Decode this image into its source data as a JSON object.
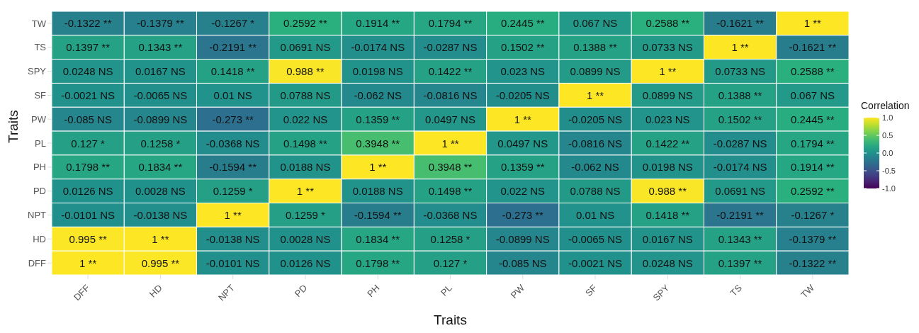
{
  "chart_data": {
    "type": "heatmap",
    "xlabel": "Traits",
    "ylabel": "Traits",
    "clabel": "Correlation",
    "categories": [
      "DFF",
      "HD",
      "NPT",
      "PD",
      "PH",
      "PL",
      "PW",
      "SF",
      "SPY",
      "TS",
      "TW"
    ],
    "y_categories": [
      "TW",
      "TS",
      "SPY",
      "SF",
      "PW",
      "PL",
      "PH",
      "PD",
      "NPT",
      "HD",
      "DFF"
    ],
    "cells": [
      [
        -0.1322,
        -0.1379,
        -0.1267,
        0.2592,
        0.1914,
        0.1794,
        0.2445,
        0.067,
        0.2588,
        -0.1621,
        1
      ],
      [
        0.1397,
        0.1343,
        -0.2191,
        0.0691,
        -0.0174,
        -0.0287,
        0.1502,
        0.1388,
        0.0733,
        1,
        -0.1621
      ],
      [
        0.0248,
        0.0167,
        0.1418,
        0.988,
        0.0198,
        0.1422,
        0.023,
        0.0899,
        1,
        0.0733,
        0.2588
      ],
      [
        -0.0021,
        -0.0065,
        0.01,
        0.0788,
        -0.062,
        -0.0816,
        -0.0205,
        1,
        0.0899,
        0.1388,
        0.067
      ],
      [
        -0.085,
        -0.0899,
        -0.273,
        0.022,
        0.1359,
        0.0497,
        1,
        -0.0205,
        0.023,
        0.1502,
        0.2445
      ],
      [
        0.127,
        0.1258,
        -0.0368,
        0.1498,
        0.3948,
        1,
        0.0497,
        -0.0816,
        0.1422,
        -0.0287,
        0.1794
      ],
      [
        0.1798,
        0.1834,
        -0.1594,
        0.0188,
        1,
        0.3948,
        0.1359,
        -0.062,
        0.0198,
        -0.0174,
        0.1914
      ],
      [
        0.0126,
        0.0028,
        0.1259,
        1,
        0.0188,
        0.1498,
        0.022,
        0.0788,
        0.988,
        0.0691,
        0.2592
      ],
      [
        -0.0101,
        -0.0138,
        1,
        0.1259,
        -0.1594,
        -0.0368,
        -0.273,
        0.01,
        0.1418,
        -0.2191,
        -0.1267
      ],
      [
        0.995,
        1,
        -0.0138,
        0.0028,
        0.1834,
        0.1258,
        -0.0899,
        -0.0065,
        0.0167,
        0.1343,
        -0.1379
      ],
      [
        1,
        0.995,
        -0.0101,
        0.0126,
        0.1798,
        0.127,
        -0.085,
        -0.0021,
        0.0248,
        0.1397,
        -0.1322
      ]
    ],
    "cell_labels": [
      [
        "-0.1322 **",
        "-0.1379 **",
        "-0.1267 *",
        "0.2592 **",
        "0.1914 **",
        "0.1794 **",
        "0.2445 **",
        "0.067 NS",
        "0.2588 **",
        "-0.1621 **",
        "1 **"
      ],
      [
        "0.1397 **",
        "0.1343 **",
        "-0.2191 **",
        "0.0691 NS",
        "-0.0174 NS",
        "-0.0287 NS",
        "0.1502 **",
        "0.1388 **",
        "0.0733 NS",
        "1 **",
        "-0.1621 **"
      ],
      [
        "0.0248 NS",
        "0.0167 NS",
        "0.1418 **",
        "0.988 **",
        "0.0198 NS",
        "0.1422 **",
        "0.023 NS",
        "0.0899 NS",
        "1 **",
        "0.0733 NS",
        "0.2588 **"
      ],
      [
        "-0.0021 NS",
        "-0.0065 NS",
        "0.01 NS",
        "0.0788 NS",
        "-0.062 NS",
        "-0.0816 NS",
        "-0.0205 NS",
        "1 **",
        "0.0899 NS",
        "0.1388 **",
        "0.067 NS"
      ],
      [
        "-0.085 NS",
        "-0.0899 NS",
        "-0.273 **",
        "0.022 NS",
        "0.1359 **",
        "0.0497 NS",
        "1 **",
        "-0.0205 NS",
        "0.023 NS",
        "0.1502 **",
        "0.2445 **"
      ],
      [
        "0.127 *",
        "0.1258 *",
        "-0.0368 NS",
        "0.1498 **",
        "0.3948 **",
        "1 **",
        "0.0497 NS",
        "-0.0816 NS",
        "0.1422 **",
        "-0.0287 NS",
        "0.1794 **"
      ],
      [
        "0.1798 **",
        "0.1834 **",
        "-0.1594 **",
        "0.0188 NS",
        "1 **",
        "0.3948 **",
        "0.1359 **",
        "-0.062 NS",
        "0.0198 NS",
        "-0.0174 NS",
        "0.1914 **"
      ],
      [
        "0.0126 NS",
        "0.0028 NS",
        "0.1259 *",
        "1 **",
        "0.0188 NS",
        "0.1498 **",
        "0.022 NS",
        "0.0788 NS",
        "0.988 **",
        "0.0691 NS",
        "0.2592 **"
      ],
      [
        "-0.0101 NS",
        "-0.0138 NS",
        "1 **",
        "0.1259 *",
        "-0.1594 **",
        "-0.0368 NS",
        "-0.273 **",
        "0.01 NS",
        "0.1418 **",
        "-0.2191 **",
        "-0.1267 *"
      ],
      [
        "0.995 **",
        "1 **",
        "-0.0138 NS",
        "0.0028 NS",
        "0.1834 **",
        "0.1258 *",
        "-0.0899 NS",
        "-0.0065 NS",
        "0.0167 NS",
        "0.1343 **",
        "-0.1379 **"
      ],
      [
        "1 **",
        "0.995 **",
        "-0.0101 NS",
        "0.0126 NS",
        "0.1798 **",
        "0.127 *",
        "-0.085 NS",
        "-0.0021 NS",
        "0.0248 NS",
        "0.1397 **",
        "-0.1322 **"
      ]
    ],
    "clim": [
      -1,
      1
    ],
    "cticks": [
      {
        "value": 1,
        "label": "1.0"
      },
      {
        "value": 0.5,
        "label": "0.5"
      },
      {
        "value": 0,
        "label": "0.0"
      },
      {
        "value": -0.5,
        "label": "-0.5"
      },
      {
        "value": -1,
        "label": "-1.0"
      }
    ]
  }
}
